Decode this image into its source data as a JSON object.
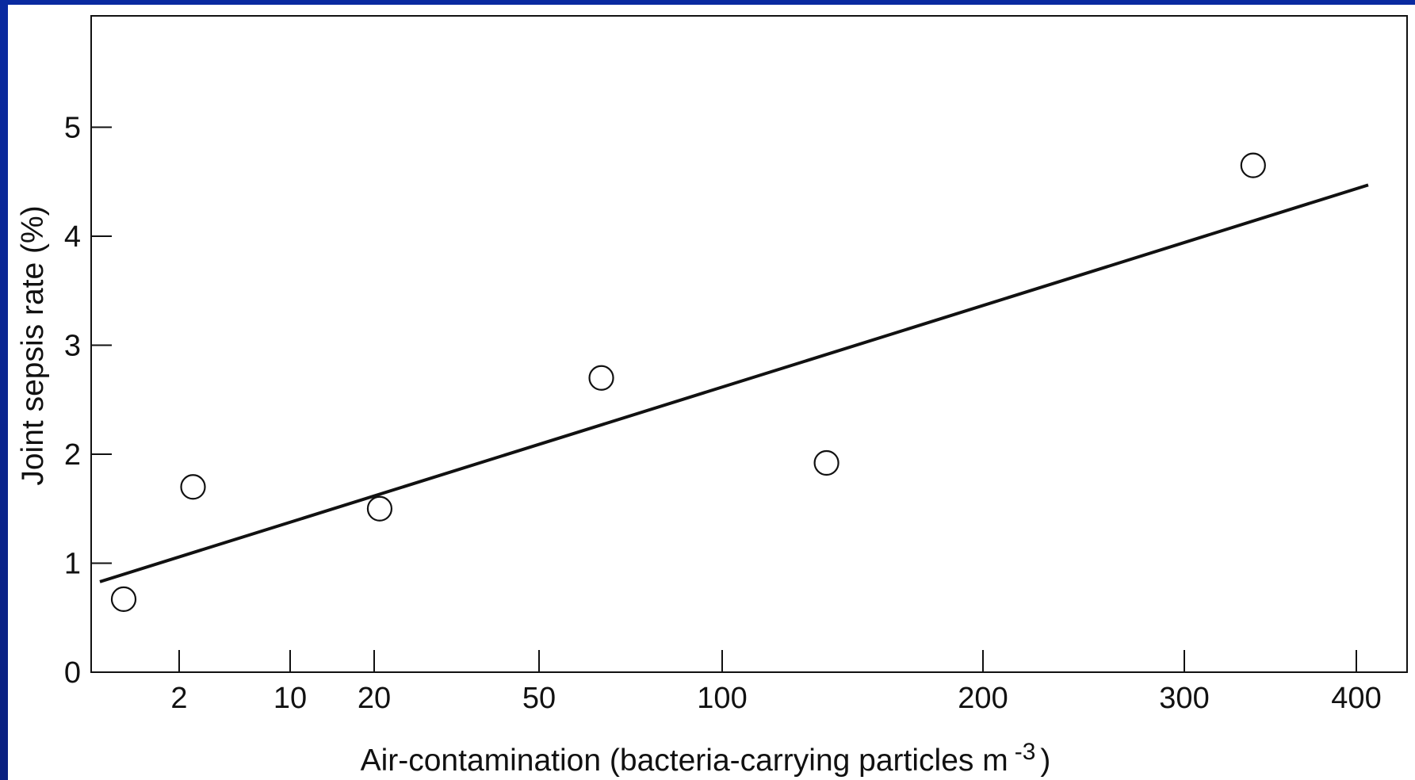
{
  "chart_data": {
    "type": "scatter",
    "title": "",
    "xlabel": "Air-contamination (bacteria-carrying particles m",
    "xlabel_superscript": "-3",
    "xlabel_suffix": ")",
    "ylabel": "Joint sepsis rate (%)",
    "ylim": [
      0,
      5.3
    ],
    "yticks": [
      "0",
      "1",
      "2",
      "3",
      "4",
      "5"
    ],
    "xticks": [
      "2",
      "10",
      "20",
      "50",
      "100",
      "200",
      "300",
      "400"
    ],
    "series": [
      {
        "points": [
          {
            "x": 1,
            "y": 0.67
          },
          {
            "x": 3,
            "y": 1.7
          },
          {
            "x": 21,
            "y": 1.5
          },
          {
            "x": 67,
            "y": 2.7
          },
          {
            "x": 140,
            "y": 1.92
          },
          {
            "x": 340,
            "y": 4.65
          }
        ]
      }
    ],
    "trendline": {
      "type": "linear",
      "start": {
        "x": 1,
        "y": 0.83
      },
      "end": {
        "x": 405,
        "y": 4.47
      }
    },
    "grid": false,
    "legend": "none"
  },
  "colors": {
    "background": "#0a2590",
    "plot_background": "#ffffff",
    "ink": "#111111"
  }
}
